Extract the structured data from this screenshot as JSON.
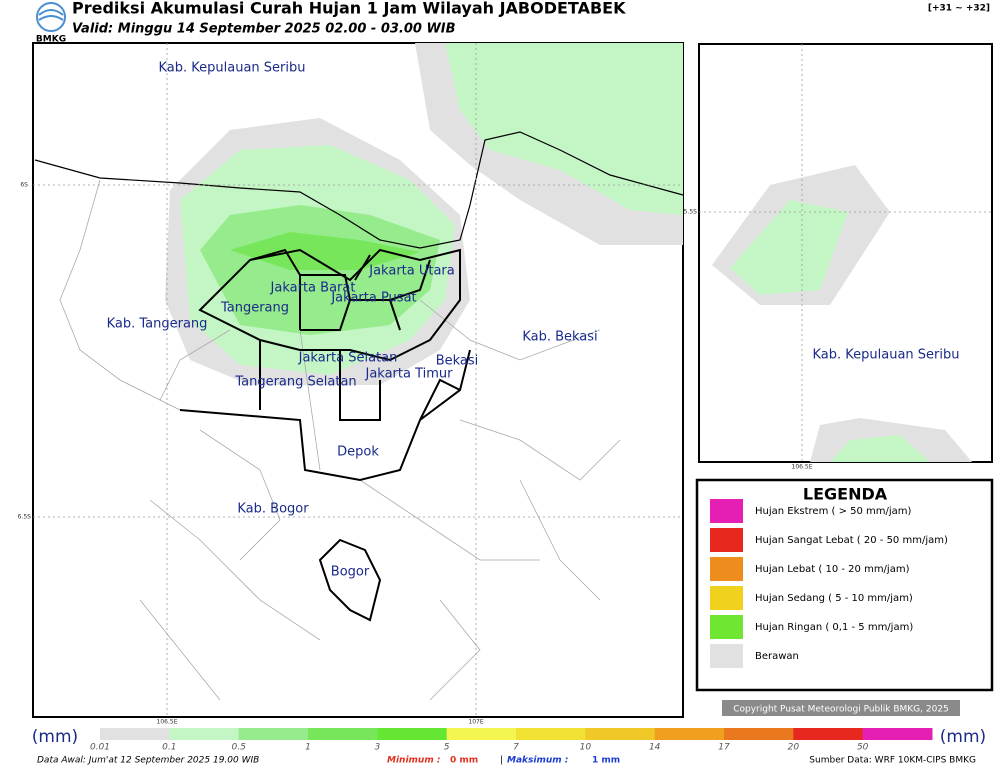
{
  "header": {
    "logo": "BMKG",
    "title": "Prediksi Akumulasi Curah Hujan 1 Jam Wilayah JABODETABEK",
    "valid": "Valid: Minggu 14 September 2025 02.00 - 03.00 WIB",
    "range": "[+31 ~ +32]"
  },
  "map": {
    "labels": [
      "Kab. Kepulauan Seribu",
      "Kab. Tangerang",
      "Tangerang",
      "Jakarta Barat",
      "Jakarta Utara",
      "Jakarta Pusat",
      "Jakarta Selatan",
      "Jakarta Timur",
      "Bekasi",
      "Kab. Bekasi",
      "Tangerang Selatan",
      "Depok",
      "Kab. Bogor",
      "Bogor"
    ],
    "grid_labels": [
      "6S",
      "6.5S",
      "106.5E",
      "107E"
    ]
  },
  "inset": {
    "label": "Kab. Kepulauan Seribu",
    "grid_labels": [
      "5.5S",
      "106.5E"
    ]
  },
  "legend": {
    "title": "LEGENDA",
    "items": [
      {
        "label": "Hujan Ekstrem ( > 50 mm/jam)",
        "color": "#e61fb4"
      },
      {
        "label": "Hujan Sangat Lebat ( 20 - 50 mm/jam)",
        "color": "#e8281e"
      },
      {
        "label": "Hujan Lebat ( 10 - 20 mm/jam)",
        "color": "#ee8c1e"
      },
      {
        "label": "Hujan Sedang ( 5 - 10 mm/jam)",
        "color": "#f0d21e"
      },
      {
        "label": "Hujan Ringan ( 0,1 - 5 mm/jam)",
        "color": "#6ee632"
      },
      {
        "label": "Berawan",
        "color": "#e1e1e1"
      }
    ]
  },
  "copyright": "Copyright Pusat Meteorologi Publik BMKG, 2025",
  "colorbar": {
    "unit": "(mm)",
    "labels": [
      "0.01",
      "0.1",
      "0.5",
      "1",
      "3",
      "5",
      "7",
      "10",
      "14",
      "17",
      "20",
      "50"
    ],
    "colors": [
      "#e1e1e1",
      "#c4f5c4",
      "#96ec8c",
      "#78e65a",
      "#64e632",
      "#f5f550",
      "#f0e132",
      "#f0c828",
      "#f0a01e",
      "#ea781e",
      "#e6281e",
      "#e61fb4"
    ]
  },
  "footer": {
    "data_awal": "Data Awal: Jum'at 12 September 2025 19.00 WIB",
    "minimum": "Minimum :",
    "min_value": "0 mm",
    "separator": "|",
    "maksimum": "Maksimum :",
    "max_value": "1 mm",
    "source": "Sumber Data: WRF 10KM-CIPS BMKG"
  }
}
